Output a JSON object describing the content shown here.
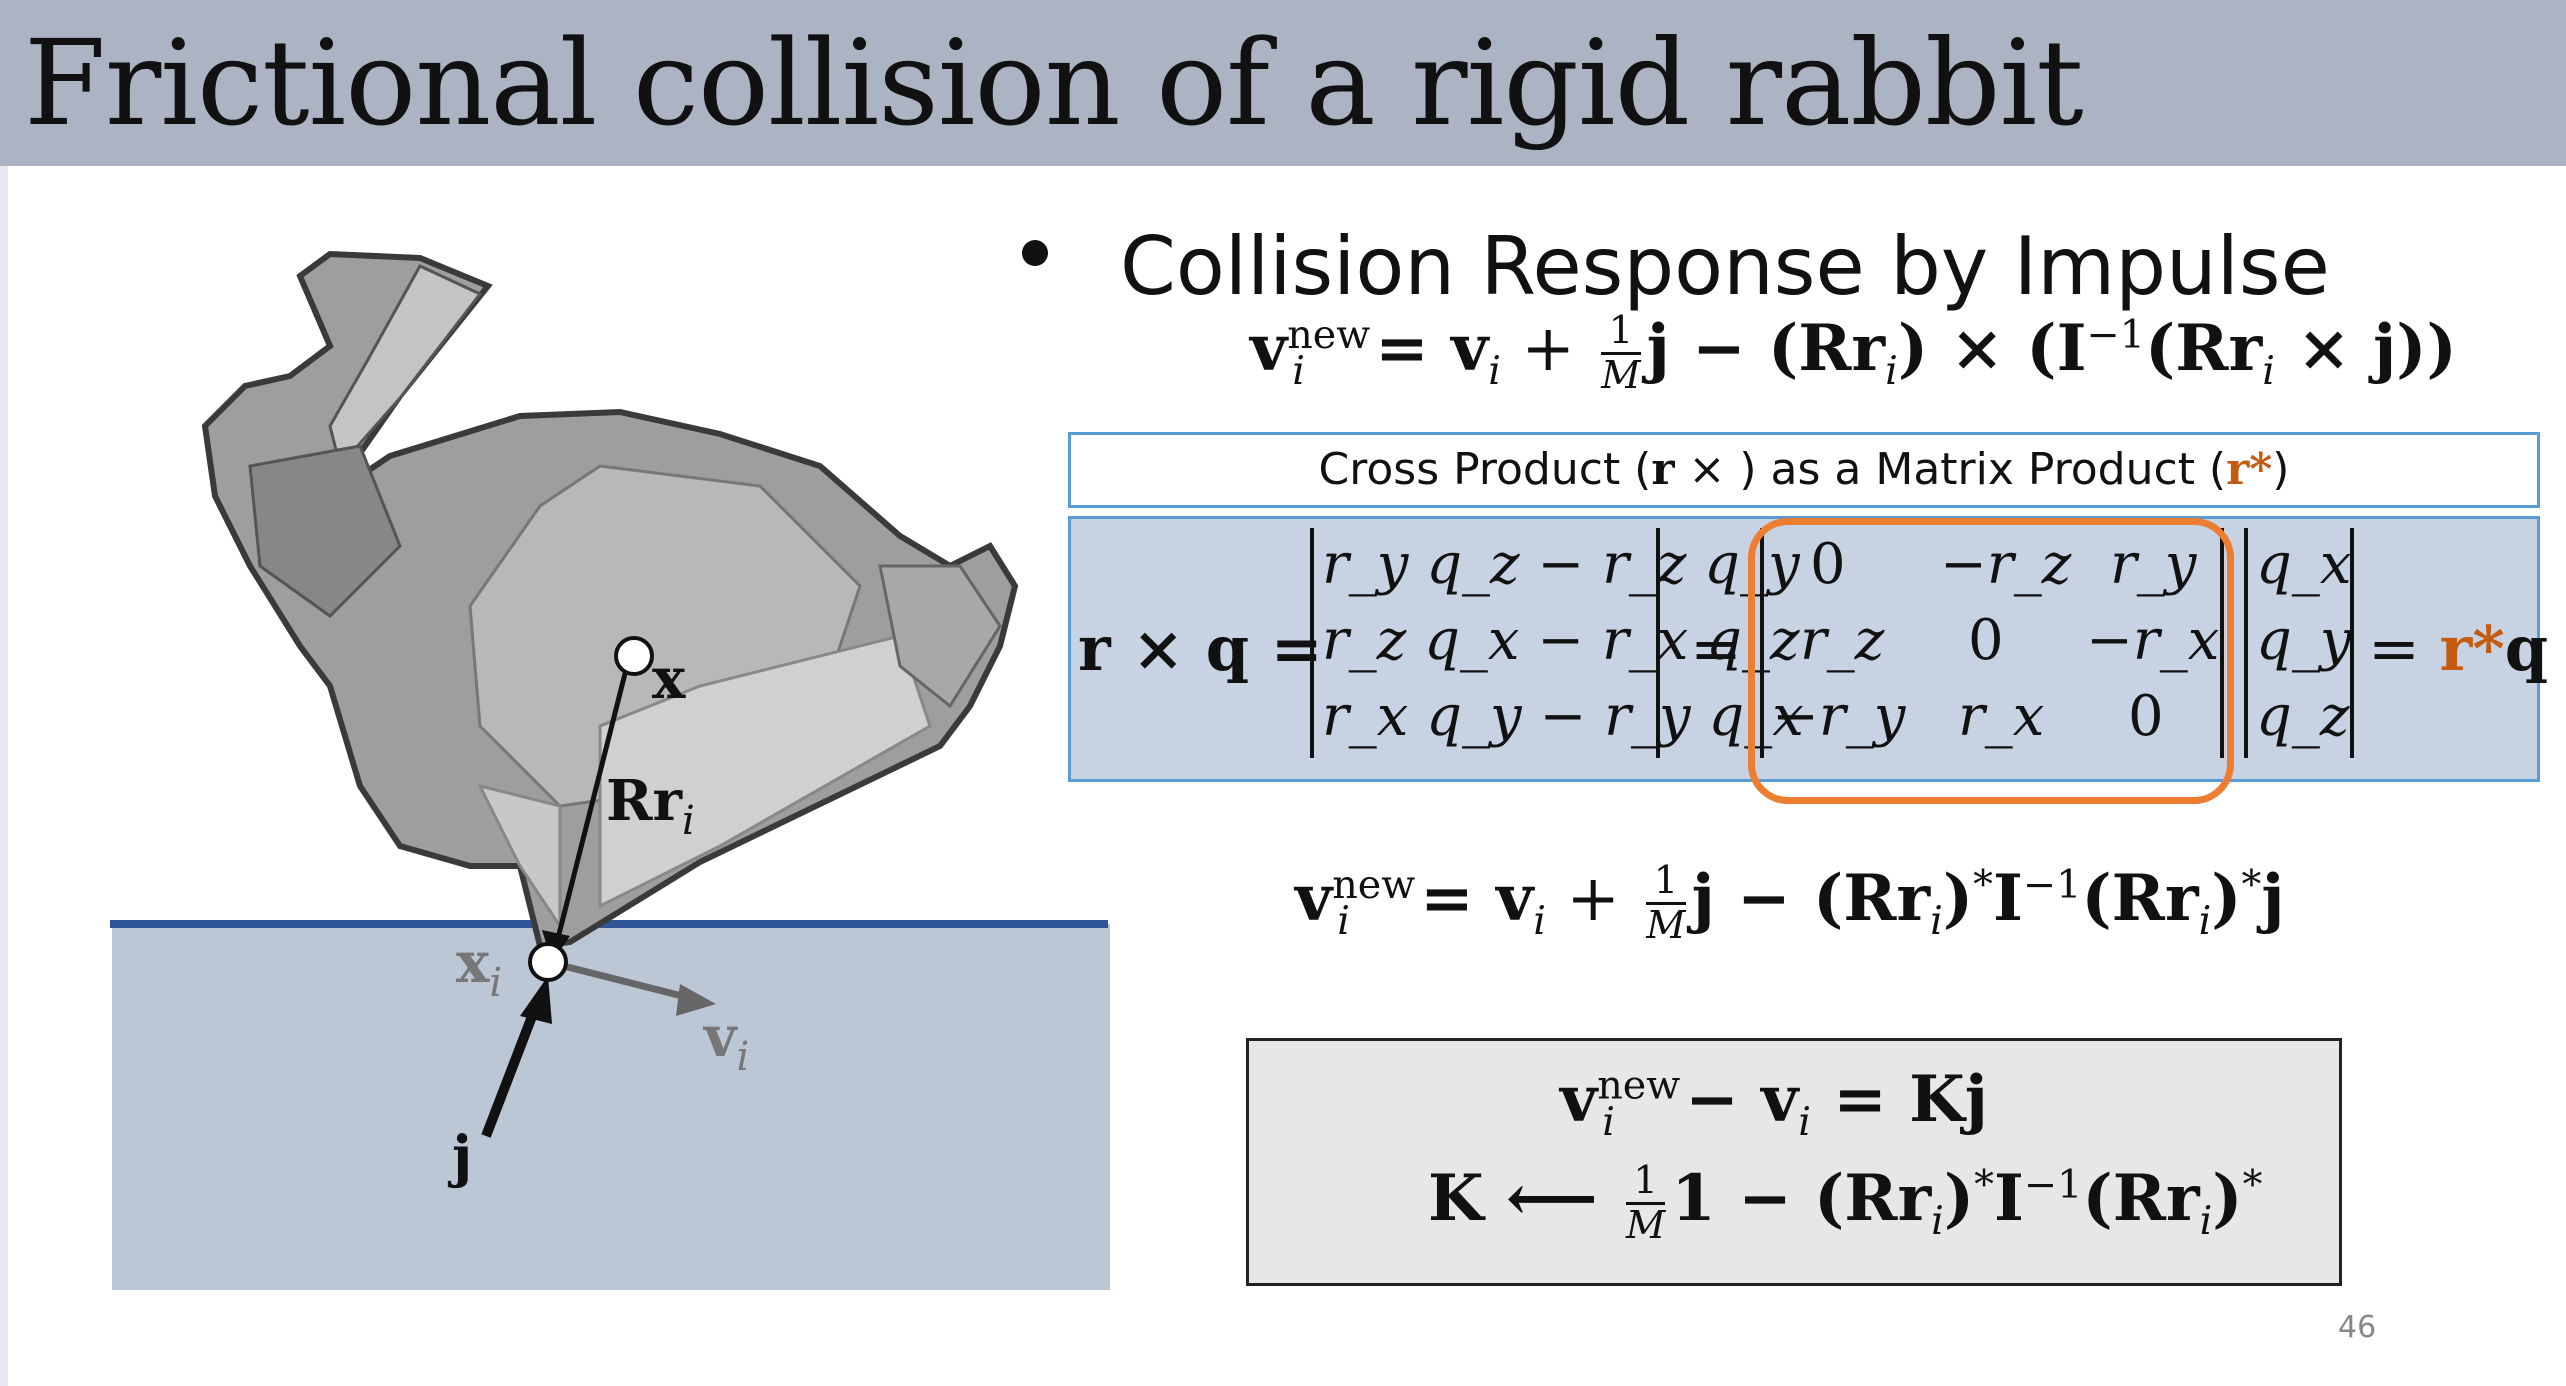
{
  "slide": {
    "title": "Frictional collision of a rigid rabbit",
    "page_number": "46"
  },
  "bullet": {
    "heading": "Collision Response by Impulse"
  },
  "caption": {
    "prefix": "Cross Product (",
    "r": "r",
    "times": " × ) as a Matrix Product (",
    "r_star": "r*",
    "suffix": ")"
  },
  "illustration": {
    "label_x": "x",
    "label_rri_main": "Rr",
    "label_rri_sub": "i",
    "label_xi_main": "x",
    "label_xi_sub": "i",
    "label_vi_main": "v",
    "label_vi_sub": "i",
    "label_j": "j",
    "colors": {
      "ground": "#bcc7d6",
      "ground_line": "#2f5597",
      "bunny": "#9a9a9a"
    }
  },
  "equations": {
    "eq1": {
      "v": "v",
      "new": "new",
      "i": "i",
      "plus": " = v",
      "vi_sub": "i",
      "plus2": " + ",
      "num": "1",
      "den": "M",
      "rest": "j − (Rr",
      "rest_sub": "i",
      "rest2": ") × (I",
      "inv": "−1",
      "rest3": "(Rr",
      "rest3_sub": "i",
      "rest4": " × j))"
    },
    "matrix": {
      "lhs": "r × q = ",
      "col_rows": [
        "r_y q_z − r_z q_y",
        "r_z q_x − r_x q_z",
        "r_x q_y − r_y q_x"
      ],
      "eq": "=",
      "skew_rows": [
        [
          "0",
          "−r_z",
          "r_y"
        ],
        [
          "r_z",
          "0",
          "−r_x"
        ],
        [
          "−r_y",
          "r_x",
          "0"
        ]
      ],
      "q_rows": [
        "q_x",
        "q_y",
        "q_z"
      ],
      "rhs_eq": "= ",
      "rhs_rstar": "r*",
      "rhs_q": "q"
    },
    "eq3": {
      "text_a": "v",
      "text_new": "new",
      "text_i": "i",
      "text_b": " = v",
      "text_b_sub": "i",
      "text_c": " + ",
      "num": "1",
      "den": "M",
      "text_d": "j − (Rr",
      "text_d_sub": "i",
      "text_e": ")",
      "star1": "*",
      "text_f": "I",
      "inv": "−1",
      "text_g": "(Rr",
      "text_g_sub": "i",
      "text_h": ")",
      "star2": "*",
      "text_j": "j"
    },
    "eq4": {
      "v": "v",
      "new": "new",
      "i": "i",
      "minus": " − v",
      "vi_sub": "i",
      "rest": " = Kj"
    },
    "eq5": {
      "k": "K ⟵ ",
      "num": "1",
      "den": "M",
      "one": "1",
      "rest": " − (Rr",
      "rest_sub": "i",
      "rest2": ")",
      "star1": "*",
      "rest3": "I",
      "inv": "−1",
      "rest4": "(Rr",
      "rest4_sub": "i",
      "rest5": ")",
      "star2": "*"
    }
  }
}
